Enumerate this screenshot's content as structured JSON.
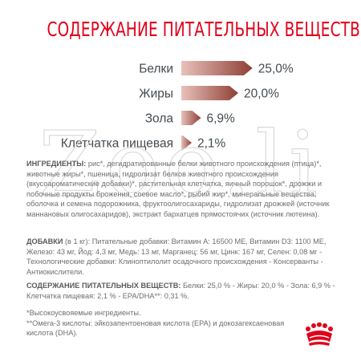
{
  "title": "СОДЕРЖАНИЕ ПИТАТЕЛЬНЫХ ВЕЩЕСТВ",
  "chart_data": {
    "type": "bar",
    "orientation": "horizontal",
    "categories": [
      "Белки",
      "Жиры",
      "Зола",
      "Клетчатка пищевая"
    ],
    "values": [
      25.0,
      20.0,
      6.9,
      2.1
    ],
    "value_labels": [
      "25,0%",
      "20,0%",
      "6,9%",
      "2,1%"
    ],
    "unit": "%",
    "bar_style": "arrow",
    "colors": {
      "bar_start": "#e8c1bb",
      "bar_end": "#8e3f35"
    },
    "grid": false,
    "legend": "none"
  },
  "ingredients": {
    "label": "ИНГРЕДИЕНТЫ:",
    "text": "рис*, дегидратированные белки животного происхождения (птица)*, животные жиры*, пшеница, гидролизат белков животного происхождения (вкусоароматические добавки)*, растительная клетчатка, яичный порошок*, дрожжи и побочные продукты брожения, соевое масло*, рыбий жир*, минеральные вещества, оболочка и семена подорожника, фруктоолигосахариды, гидролизат дрожжей (источник маннановых олигосахаридов), экстракт бархатцев прямостоячих (источник лютеина)."
  },
  "additives": {
    "label": "ДОБАВКИ",
    "unit_note": "(в 1 кг):",
    "text": "Питательные добавки: Витамин А: 16500 МЕ, Витамин D3: 1100 МЕ, Железо: 43 мг, Йод: 4,3 мг, Медь: 13 мг, Марганец: 56 мг, Цинк: 167 мг, Селен: 0,08 мг - Технологические добавки: Клиноптилолит осадочного происхождения - Консерванты - Антиокислители."
  },
  "nutrients_text": {
    "label": "СОДЕРЖАНИЕ ПИТАТЕЛЬНЫХ ВЕЩЕСТВ:",
    "text": "Белки: 25,0 % - Жиры: 20,0 % - Зола: 6,9 % - Клетчатка пищевая: 2,1 % - EPA/DHA**: 0,31 %."
  },
  "footnotes": {
    "line1": "*Высокоусвояемые ингредиенты.",
    "line2": "**Омега-3 кислоты: эйкозапентоеновая кислота (EPA) и докозагексаеновая кислота (DHA)."
  },
  "watermark_text": "Zoo.li",
  "logo_icon": "royal-canin-crown-icon"
}
